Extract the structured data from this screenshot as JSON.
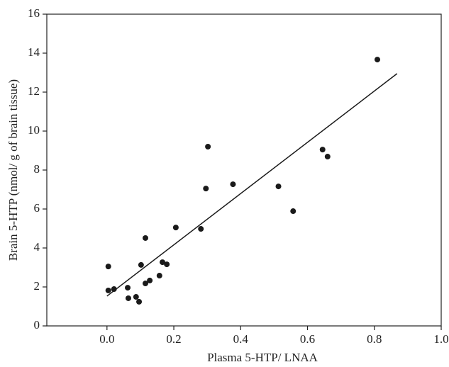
{
  "chart_data": {
    "type": "scatter",
    "x_label": "Plasma 5-HTP/ LNAA",
    "y_label": "Brain 5-HTP (nmol/ g of brain tissue)",
    "xlim": [
      -0.18,
      1.0
    ],
    "ylim": [
      0,
      16
    ],
    "xticks": [
      {
        "value": 0,
        "label": "0.0"
      },
      0.2,
      0.4,
      0.6,
      0.8,
      {
        "value": 1,
        "label": "1.0"
      }
    ],
    "yticks": [
      0,
      2,
      4,
      6,
      8,
      10,
      12,
      14,
      16
    ],
    "color": "#1a1a1a",
    "series": [
      {
        "x": [
          0.004,
          0.004,
          0.021,
          0.062,
          0.064,
          0.087,
          0.096,
          0.102,
          0.115,
          0.115,
          0.128,
          0.157,
          0.166,
          0.179,
          0.206,
          0.281,
          0.296,
          0.302,
          0.377,
          0.513,
          0.557,
          0.645,
          0.66,
          0.809
        ],
        "values": [
          3.05,
          1.82,
          1.89,
          1.96,
          1.42,
          1.49,
          1.24,
          3.13,
          4.51,
          2.18,
          2.33,
          2.58,
          3.27,
          3.16,
          5.05,
          4.98,
          7.05,
          9.2,
          7.27,
          7.16,
          5.89,
          9.05,
          8.69,
          13.67
        ]
      }
    ],
    "fit": {
      "x": [
        0,
        0.868
      ],
      "values": [
        1.53,
        12.95
      ]
    }
  }
}
